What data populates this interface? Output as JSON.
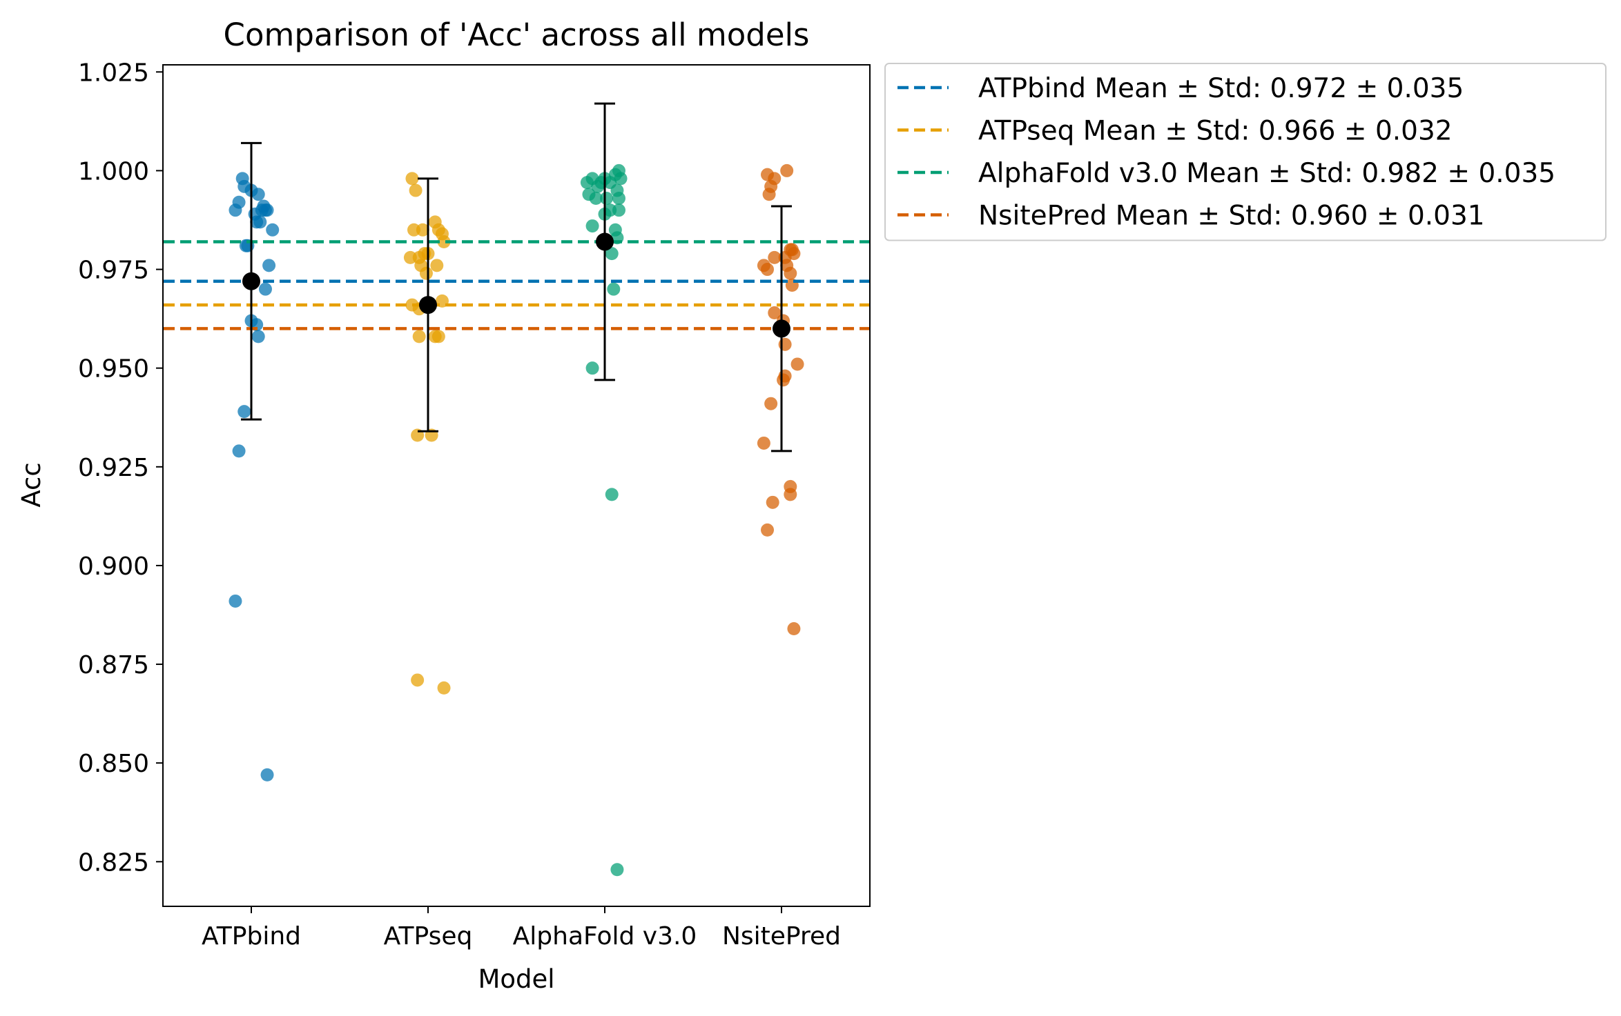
{
  "chart_data": {
    "type": "scatter",
    "title": "Comparison of 'Acc' across all models",
    "xlabel": "Model",
    "ylabel": "Acc",
    "ylim": [
      0.8137,
      1.0268
    ],
    "yticks": [
      "0.825",
      "0.850",
      "0.875",
      "0.900",
      "0.925",
      "0.950",
      "0.975",
      "1.000",
      "1.025"
    ],
    "ytick_values": [
      0.825,
      0.85,
      0.875,
      0.9,
      0.925,
      0.95,
      0.975,
      1.0,
      1.025
    ],
    "categories": [
      "ATPbind",
      "ATPseq",
      "AlphaFold v3.0",
      "NsitePred"
    ],
    "grid": false,
    "legend_position": "outside upper-right",
    "series": [
      {
        "name": "ATPbind",
        "color": "#0072B2",
        "mean": 0.972,
        "std": 0.035,
        "points": [
          [
            -0.09,
            0.99
          ],
          [
            -0.07,
            0.992
          ],
          [
            -0.05,
            0.998
          ],
          [
            -0.04,
            0.996
          ],
          [
            -0.03,
            0.981
          ],
          [
            -0.02,
            0.981
          ],
          [
            0.0,
            0.995
          ],
          [
            0.02,
            0.989
          ],
          [
            0.03,
            0.987
          ],
          [
            0.04,
            0.994
          ],
          [
            0.05,
            0.987
          ],
          [
            0.06,
            0.99
          ],
          [
            0.07,
            0.991
          ],
          [
            0.08,
            0.99
          ],
          [
            0.09,
            0.99
          ],
          [
            0.12,
            0.985
          ],
          [
            0.1,
            0.976
          ],
          [
            0.08,
            0.97
          ],
          [
            0.0,
            0.962
          ],
          [
            0.03,
            0.961
          ],
          [
            0.04,
            0.958
          ],
          [
            -0.04,
            0.939
          ],
          [
            -0.07,
            0.929
          ],
          [
            -0.09,
            0.891
          ],
          [
            0.09,
            0.847
          ]
        ]
      },
      {
        "name": "ATPseq",
        "color": "#E69F00",
        "mean": 0.966,
        "std": 0.032,
        "points": [
          [
            -0.09,
            0.998
          ],
          [
            -0.07,
            0.995
          ],
          [
            -0.08,
            0.985
          ],
          [
            -0.03,
            0.985
          ],
          [
            0.04,
            0.987
          ],
          [
            0.06,
            0.985
          ],
          [
            0.08,
            0.984
          ],
          [
            0.09,
            0.982
          ],
          [
            -0.1,
            0.978
          ],
          [
            -0.05,
            0.978
          ],
          [
            -0.02,
            0.979
          ],
          [
            0.0,
            0.979
          ],
          [
            -0.04,
            0.976
          ],
          [
            0.05,
            0.976
          ],
          [
            -0.01,
            0.974
          ],
          [
            -0.09,
            0.966
          ],
          [
            -0.05,
            0.965
          ],
          [
            0.08,
            0.967
          ],
          [
            -0.05,
            0.958
          ],
          [
            0.04,
            0.958
          ],
          [
            0.06,
            0.958
          ],
          [
            -0.06,
            0.933
          ],
          [
            0.02,
            0.933
          ],
          [
            -0.06,
            0.871
          ],
          [
            0.09,
            0.869
          ]
        ]
      },
      {
        "name": "AlphaFold v3.0",
        "color": "#009E73",
        "mean": 0.982,
        "std": 0.035,
        "points": [
          [
            -0.1,
            0.997
          ],
          [
            -0.07,
            0.998
          ],
          [
            -0.04,
            0.996
          ],
          [
            -0.02,
            0.997
          ],
          [
            0.0,
            0.998
          ],
          [
            0.03,
            0.997
          ],
          [
            0.06,
            0.999
          ],
          [
            0.08,
            1.0
          ],
          [
            0.09,
            0.998
          ],
          [
            -0.09,
            0.994
          ],
          [
            -0.05,
            0.993
          ],
          [
            0.01,
            0.993
          ],
          [
            0.07,
            0.995
          ],
          [
            0.08,
            0.993
          ],
          [
            0.0,
            0.989
          ],
          [
            0.03,
            0.99
          ],
          [
            0.08,
            0.99
          ],
          [
            -0.07,
            0.986
          ],
          [
            0.06,
            0.985
          ],
          [
            0.07,
            0.983
          ],
          [
            0.04,
            0.979
          ],
          [
            0.05,
            0.97
          ],
          [
            -0.07,
            0.95
          ],
          [
            0.04,
            0.918
          ],
          [
            0.07,
            0.823
          ]
        ]
      },
      {
        "name": "NsitePred",
        "color": "#D55E00",
        "mean": 0.96,
        "std": 0.031,
        "points": [
          [
            -0.08,
            0.999
          ],
          [
            -0.04,
            0.998
          ],
          [
            0.03,
            1.0
          ],
          [
            -0.07,
            0.994
          ],
          [
            -0.06,
            0.996
          ],
          [
            0.05,
            0.98
          ],
          [
            0.06,
            0.98
          ],
          [
            0.07,
            0.979
          ],
          [
            -0.04,
            0.978
          ],
          [
            0.02,
            0.978
          ],
          [
            -0.1,
            0.976
          ],
          [
            0.03,
            0.976
          ],
          [
            -0.08,
            0.975
          ],
          [
            0.05,
            0.974
          ],
          [
            0.06,
            0.971
          ],
          [
            -0.04,
            0.964
          ],
          [
            0.01,
            0.962
          ],
          [
            0.02,
            0.956
          ],
          [
            0.02,
            0.948
          ],
          [
            0.01,
            0.947
          ],
          [
            0.09,
            0.951
          ],
          [
            -0.06,
            0.941
          ],
          [
            -0.1,
            0.931
          ],
          [
            0.05,
            0.92
          ],
          [
            0.05,
            0.918
          ],
          [
            -0.05,
            0.916
          ],
          [
            -0.08,
            0.909
          ],
          [
            0.07,
            0.884
          ]
        ]
      }
    ],
    "legend": [
      "ATPbind Mean ± Std: 0.972 ± 0.035",
      "ATPseq Mean ± Std: 0.966 ± 0.032",
      "AlphaFold v3.0 Mean ± Std: 0.982 ± 0.035",
      "NsitePred Mean ± Std: 0.960 ± 0.031"
    ]
  }
}
